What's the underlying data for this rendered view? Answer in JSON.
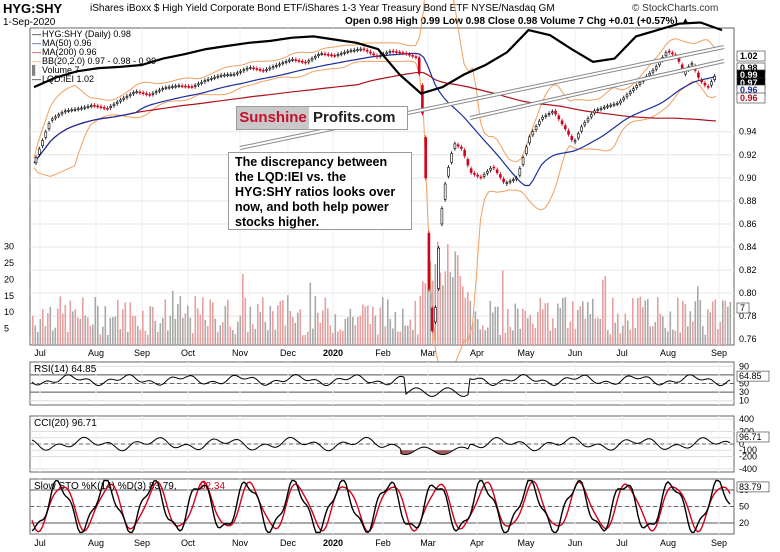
{
  "header": {
    "symbol": "HYG:SHY",
    "description": "iShares iBoxx $ High Yield Corporate Bond ETF/iShares 1-3 Year Treasury Bond ETF  NYSE/Nasdaq GM",
    "watermark": "© StockCharts.com",
    "date": "1-Sep-2020",
    "stats": "Open 0.98  High 0.99  Low 0.98  Close 0.98  Volume 7  Chg +0.01 (+0.57%) ▲"
  },
  "logo": {
    "part1": "Sunshine",
    "part2": "Profits.com"
  },
  "annotation": "The discrepancy between the LQD:IEI vs. the HYG:SHY ratios looks over now, and both help power stocks higher.",
  "colors": {
    "up": "#000000",
    "down": "#d0021b",
    "ma50": "#1a2f9c",
    "ma200": "#b0111a",
    "bb": "#f0a060",
    "volume_up": "#a9a9a9",
    "volume_down": "#e7a0a0",
    "lqd": "#000000",
    "osc_fill_pos": "#5c9a5c",
    "osc_fill_neg": "#a05a5a"
  },
  "chart_data": [
    {
      "type": "candlestick",
      "title": "HYG:SHY (Daily) 0.98",
      "legend": [
        {
          "name": "HYG:SHY (Daily) 0.98",
          "color": "#000000"
        },
        {
          "name": "MA(50) 0.96",
          "color": "#1a2f9c"
        },
        {
          "name": "MA(200) 0.96",
          "color": "#b0111a"
        },
        {
          "name": "BB(20,2.0) 0.97 - 0.98 - 0.99",
          "color": "#f0a060"
        },
        {
          "name": "Volume 7",
          "color": "#808080"
        },
        {
          "name": "LQD:IEI 1.02",
          "color": "#000000"
        }
      ],
      "x_labels": [
        "Jul",
        "Aug",
        "Sep",
        "Oct",
        "Nov",
        "Dec",
        "2020",
        "Feb",
        "Mar",
        "Apr",
        "May",
        "Jun",
        "Jul",
        "Aug",
        "Sep"
      ],
      "x_label_bold": "2020",
      "y_ticks": [
        0.76,
        0.78,
        0.8,
        0.82,
        0.84,
        0.86,
        0.88,
        0.9,
        0.92,
        0.94
      ],
      "ylim": [
        0.755,
        1.03
      ],
      "price_tags": [
        "1.02",
        "0.98",
        "0.99",
        "0.97",
        "0.96",
        "0.96"
      ],
      "volume_ticks": [
        5,
        10,
        15,
        20,
        25,
        30
      ],
      "volume_tag": "7",
      "ratio_path": [
        [
          0,
          0.913
        ],
        [
          8,
          0.95
        ],
        [
          15,
          0.958
        ],
        [
          22,
          0.96
        ],
        [
          29,
          0.963
        ],
        [
          36,
          0.96
        ],
        [
          43,
          0.968
        ],
        [
          50,
          0.975
        ],
        [
          57,
          0.972
        ],
        [
          64,
          0.978
        ],
        [
          71,
          0.98
        ],
        [
          78,
          0.979
        ],
        [
          85,
          0.985
        ],
        [
          92,
          0.989
        ],
        [
          99,
          0.99
        ],
        [
          106,
          0.996
        ],
        [
          113,
          0.993
        ],
        [
          120,
          0.998
        ],
        [
          127,
          1.003
        ],
        [
          134,
          1.0
        ],
        [
          141,
          1.008
        ],
        [
          148,
          1.006
        ],
        [
          155,
          1.01
        ],
        [
          162,
          1.012
        ],
        [
          169,
          1.005
        ],
        [
          176,
          1.01
        ],
        [
          183,
          1.008
        ],
        [
          189,
          1.004
        ],
        [
          191,
          0.97
        ],
        [
          193,
          0.9
        ],
        [
          194,
          0.82
        ],
        [
          196,
          0.765
        ],
        [
          198,
          0.79
        ],
        [
          200,
          0.86
        ],
        [
          203,
          0.9
        ],
        [
          207,
          0.93
        ],
        [
          211,
          0.925
        ],
        [
          215,
          0.905
        ],
        [
          220,
          0.9
        ],
        [
          226,
          0.91
        ],
        [
          232,
          0.895
        ],
        [
          238,
          0.9
        ],
        [
          244,
          0.935
        ],
        [
          250,
          0.952
        ],
        [
          256,
          0.958
        ],
        [
          262,
          0.942
        ],
        [
          266,
          0.93
        ],
        [
          270,
          0.945
        ],
        [
          276,
          0.958
        ],
        [
          282,
          0.962
        ],
        [
          288,
          0.965
        ],
        [
          294,
          0.975
        ],
        [
          300,
          0.985
        ],
        [
          306,
          0.995
        ],
        [
          312,
          1.01
        ],
        [
          317,
          1.005
        ],
        [
          320,
          0.99
        ],
        [
          324,
          1.0
        ],
        [
          328,
          0.985
        ],
        [
          332,
          0.978
        ],
        [
          336,
          0.99
        ]
      ],
      "ratio_xlim": [
        0,
        340
      ],
      "series": [
        {
          "name": "LQD:IEI",
          "values": [
            0.93,
            0.945,
            0.955,
            0.96,
            0.962,
            0.965,
            0.975,
            0.982,
            0.99,
            0.995,
            1.0,
            1.003,
            1.008,
            1.01,
            1.005,
            1.0,
            0.99,
            0.95,
            0.92,
            0.93,
            0.95,
            0.965,
            0.985,
            1.02,
            1.012,
            0.99,
            0.97,
            0.975,
            1.01,
            1.02,
            1.03,
            1.032,
            1.02
          ]
        },
        {
          "name": "MA(50)",
          "values": [
            0.96,
            0.965,
            0.968,
            0.97,
            0.972,
            0.975,
            0.98,
            0.985,
            0.99,
            0.993,
            0.995,
            0.99,
            0.96,
            0.92,
            0.885,
            0.87,
            0.875,
            0.89,
            0.91,
            0.92,
            0.925,
            0.93,
            0.935,
            0.94,
            0.95,
            0.955,
            0.96
          ]
        },
        {
          "name": "MA(200)",
          "values": [
            0.965,
            0.966,
            0.967,
            0.968,
            0.969,
            0.97,
            0.972,
            0.975,
            0.978,
            0.98,
            0.982,
            0.983,
            0.98,
            0.975,
            0.97,
            0.966,
            0.963,
            0.962,
            0.961,
            0.96,
            0.96,
            0.96,
            0.96
          ]
        }
      ]
    },
    {
      "type": "line",
      "title": "RSI(14) 64.85",
      "y_ticks": [
        90,
        70,
        50,
        30,
        10
      ],
      "ylim": [
        0,
        100
      ],
      "value_tag": "64.85"
    },
    {
      "type": "line",
      "title": "CCI(20) 96.71",
      "y_ticks": [
        400,
        200,
        100,
        0,
        -100,
        -200,
        -400
      ],
      "ylim": [
        -450,
        450
      ],
      "value_tag": "96.71"
    },
    {
      "type": "line",
      "title": "Slow STO %K(14) %D(3) 83.79, 82.34",
      "title_main": "Slow STO %K(14) %D(3) 83.79,",
      "title_red": "82.34",
      "y_ticks": [
        80,
        50,
        20
      ],
      "ylim": [
        0,
        100
      ],
      "value_tag": "83.79",
      "series": [
        {
          "name": "%K"
        },
        {
          "name": "%D"
        }
      ]
    }
  ]
}
